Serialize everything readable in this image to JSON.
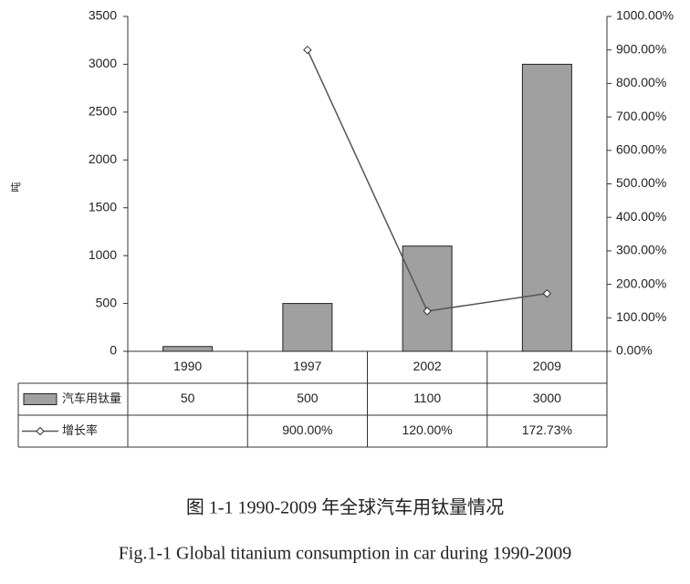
{
  "chart_data": {
    "type": "bar",
    "y_label": "吨",
    "categories": [
      "1990",
      "1997",
      "2002",
      "2009"
    ],
    "series": [
      {
        "name": "汽车用钛量",
        "type": "bar",
        "color": "#a0a0a0",
        "values": [
          50,
          500,
          1100,
          3000
        ]
      },
      {
        "name": "增长率",
        "type": "line",
        "axis": "y2",
        "color": "#555555",
        "values": [
          null,
          900,
          120,
          172.73
        ],
        "value_labels": [
          null,
          "900.00%",
          "120.00%",
          "172.73%"
        ]
      }
    ],
    "ylim": [
      0,
      3500
    ],
    "yticks": [
      0,
      500,
      1000,
      1500,
      2000,
      2500,
      3000,
      3500
    ],
    "y2lim": [
      0,
      1000
    ],
    "y2ticks": [
      {
        "value": 0,
        "label": "0.00%"
      },
      {
        "value": 100,
        "label": "100.00%"
      },
      {
        "value": 200,
        "label": "200.00%"
      },
      {
        "value": 300,
        "label": "300.00%"
      },
      {
        "value": 400,
        "label": "400.00%"
      },
      {
        "value": 500,
        "label": "500.00%"
      },
      {
        "value": 600,
        "label": "600.00%"
      },
      {
        "value": 700,
        "label": "700.00%"
      },
      {
        "value": 800,
        "label": "800.00%"
      },
      {
        "value": 900,
        "label": "900.00%"
      },
      {
        "value": 1000,
        "label": "1000.00%"
      }
    ]
  },
  "caption_cn": "图 1-1 1990-2009 年全球汽车用钛量情况",
  "caption_en": "Fig.1-1 Global titanium consumption in car during 1990-2009"
}
